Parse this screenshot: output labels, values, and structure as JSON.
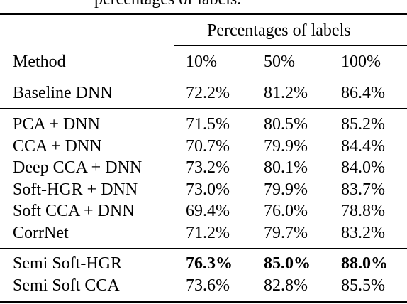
{
  "caption_fragment": "percentages of labels.",
  "table": {
    "group_header": "Percentages of labels",
    "columns": {
      "method": "Method",
      "p10": "10%",
      "p50": "50%",
      "p100": "100%"
    },
    "baseline": [
      {
        "method": "Baseline DNN",
        "p10": "72.2%",
        "p50": "81.2%",
        "p100": "86.4%"
      }
    ],
    "comparisons": [
      {
        "method": "PCA + DNN",
        "p10": "71.5%",
        "p50": "80.5%",
        "p100": "85.2%"
      },
      {
        "method": "CCA + DNN",
        "p10": "70.7%",
        "p50": "79.9%",
        "p100": "84.4%"
      },
      {
        "method": "Deep CCA + DNN",
        "p10": "73.2%",
        "p50": "80.1%",
        "p100": "84.0%"
      },
      {
        "method": "Soft-HGR + DNN",
        "p10": "73.0%",
        "p50": "79.9%",
        "p100": "83.7%"
      },
      {
        "method": "Soft CCA + DNN",
        "p10": "69.4%",
        "p50": "76.0%",
        "p100": "78.8%"
      },
      {
        "method": "CorrNet",
        "p10": "71.2%",
        "p50": "79.7%",
        "p100": "83.2%"
      }
    ],
    "semi": [
      {
        "method": "Semi Soft-HGR",
        "p10": "76.3%",
        "p50": "85.0%",
        "p100": "88.0%",
        "bold": true
      },
      {
        "method": "Semi Soft CCA",
        "p10": "73.6%",
        "p50": "82.8%",
        "p100": "85.5%"
      }
    ]
  }
}
